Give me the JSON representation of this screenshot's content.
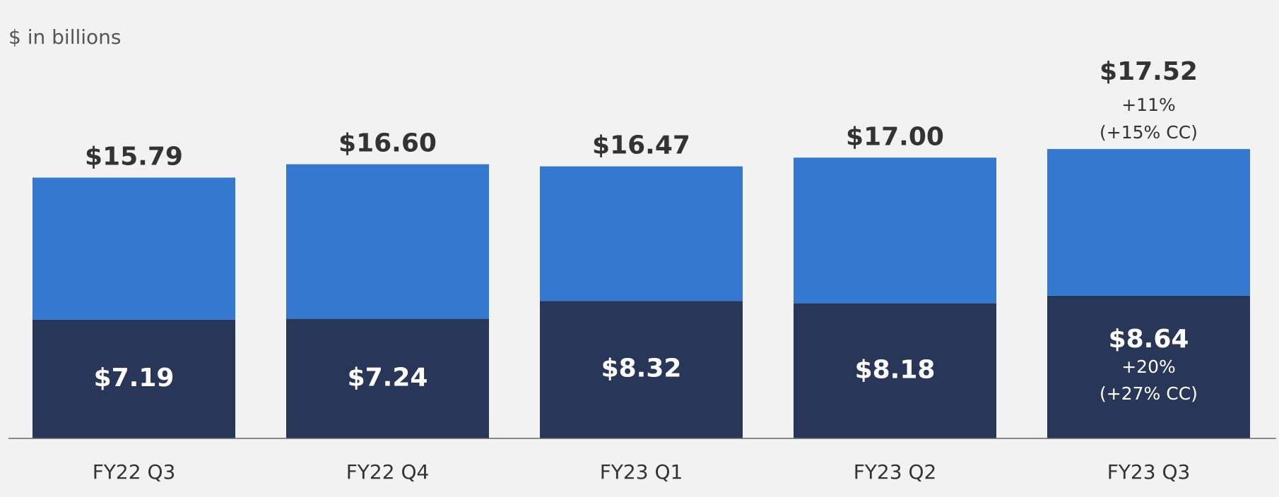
{
  "chart_data": {
    "type": "stacked-bar",
    "subtitle": "$ in billions",
    "categories": [
      "FY22 Q3",
      "FY22 Q4",
      "FY23 Q1",
      "FY23 Q2",
      "FY23 Q3"
    ],
    "series": [
      {
        "color": "#283758",
        "values": [
          7.19,
          7.24,
          8.32,
          8.18,
          8.64
        ],
        "value_labels": [
          "$7.19",
          "$7.24",
          "$8.32",
          "$8.18",
          "$8.64"
        ],
        "notes": [
          [],
          [],
          [],
          [],
          [
            "+20%",
            "(+27% CC)"
          ]
        ]
      },
      {
        "color": "#3478d0",
        "values": [
          8.6,
          9.36,
          8.15,
          8.82,
          8.88
        ]
      }
    ],
    "totals": {
      "values": [
        15.79,
        16.6,
        16.47,
        17.0,
        17.52
      ],
      "value_labels": [
        "$15.79",
        "$16.60",
        "$16.47",
        "$17.00",
        "$17.52"
      ],
      "notes": [
        [],
        [],
        [],
        [],
        [
          "+11%",
          "(+15% CC)"
        ]
      ]
    },
    "ylim": [
      0,
      26.5
    ]
  }
}
